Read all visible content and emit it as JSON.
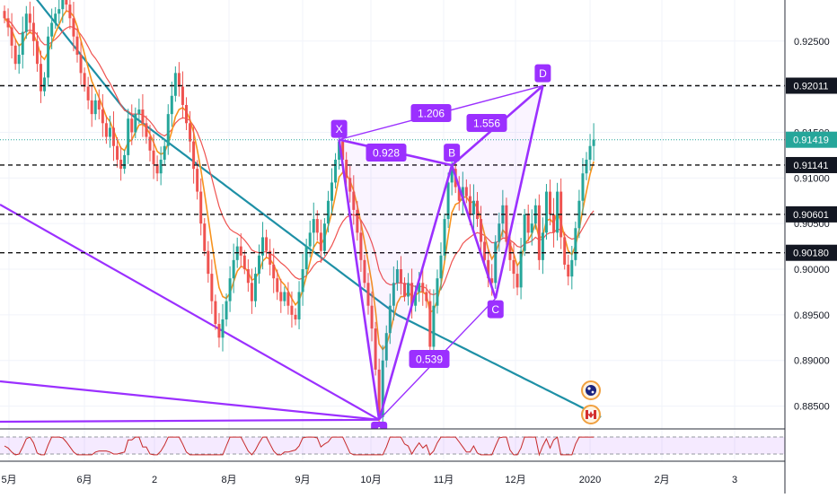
{
  "colors": {
    "up": "#26a69a",
    "down": "#ef5350",
    "pattern": "#9b30ff",
    "ma_orange": "#f7931e",
    "ma_red": "#ef5350",
    "ma_teal": "#1e90a6",
    "last_price": "#26a69a",
    "rsi": "#c62828"
  },
  "chart_data": {
    "type": "candlestick",
    "y_range": [
      0.8825,
      0.9295
    ],
    "price_axis_ticks": [
      "0.92500",
      "0.92000",
      "0.91500",
      "0.91000",
      "0.90500",
      "0.90000",
      "0.89500",
      "0.89000",
      "0.88500"
    ],
    "price_tick_values": [
      0.925,
      0.92,
      0.915,
      0.91,
      0.905,
      0.9,
      0.895,
      0.89,
      0.885
    ],
    "time_axis_labels": [
      "5月",
      "6月",
      "2",
      "8月",
      "9月",
      "10月",
      "11月",
      "12月",
      "2020",
      "2月",
      "3"
    ],
    "horizontal_levels": [
      {
        "value": 0.92011,
        "label": "0.92011"
      },
      {
        "value": 0.91141,
        "label": "0.91141"
      },
      {
        "value": 0.90601,
        "label": "0.90601"
      },
      {
        "value": 0.9018,
        "label": "0.90180"
      }
    ],
    "last_price": {
      "value": 0.91419,
      "label": "0.91419"
    },
    "pattern_points": [
      {
        "name": "X",
        "bar": 92,
        "value": 0.9142
      },
      {
        "name": "A",
        "bar": 103,
        "value": 0.8835
      },
      {
        "name": "B",
        "bar": 123,
        "value": 0.9114
      },
      {
        "name": "C",
        "bar": 135,
        "value": 0.8968
      },
      {
        "name": "D",
        "bar": 148,
        "value": 0.9201
      }
    ],
    "ratios": [
      "1.206",
      "1.556",
      "0.928",
      "0.539"
    ],
    "close": [
      0.9275,
      0.9265,
      0.9245,
      0.9225,
      0.9235,
      0.926,
      0.928,
      0.927,
      0.925,
      0.9225,
      0.9195,
      0.921,
      0.9255,
      0.927,
      0.928,
      0.9285,
      0.9295,
      0.929,
      0.9275,
      0.9255,
      0.9235,
      0.9215,
      0.92,
      0.9185,
      0.917,
      0.9185,
      0.9175,
      0.916,
      0.9145,
      0.9155,
      0.9135,
      0.912,
      0.911,
      0.9125,
      0.9165,
      0.915,
      0.917,
      0.9175,
      0.916,
      0.9145,
      0.913,
      0.9115,
      0.9105,
      0.912,
      0.9135,
      0.917,
      0.919,
      0.9215,
      0.92,
      0.918,
      0.916,
      0.914,
      0.911,
      0.9085,
      0.905,
      0.902,
      0.8995,
      0.8965,
      0.894,
      0.8925,
      0.8945,
      0.8965,
      0.899,
      0.901,
      0.9025,
      0.9015,
      0.9,
      0.8985,
      0.8965,
      0.8995,
      0.9015,
      0.9035,
      0.902,
      0.9005,
      0.899,
      0.8975,
      0.8965,
      0.8975,
      0.896,
      0.895,
      0.8945,
      0.8975,
      0.9,
      0.9025,
      0.904,
      0.9055,
      0.904,
      0.902,
      0.905,
      0.9075,
      0.9095,
      0.912,
      0.914,
      0.912,
      0.91,
      0.9085,
      0.9065,
      0.904,
      0.901,
      0.8985,
      0.896,
      0.8935,
      0.889,
      0.8838,
      0.89,
      0.893,
      0.896,
      0.8985,
      0.9,
      0.8985,
      0.897,
      0.8985,
      0.896,
      0.8975,
      0.8985,
      0.8975,
      0.8965,
      0.8915,
      0.896,
      0.899,
      0.9015,
      0.9055,
      0.9095,
      0.911,
      0.909,
      0.9075,
      0.909,
      0.908,
      0.906,
      0.9075,
      0.9055,
      0.903,
      0.901,
      0.899,
      0.8985,
      0.903,
      0.905,
      0.907,
      0.903,
      0.901,
      0.8995,
      0.898,
      0.902,
      0.906,
      0.904,
      0.905,
      0.907,
      0.901,
      0.904,
      0.9085,
      0.906,
      0.904,
      0.9085,
      0.9035,
      0.9005,
      0.8992,
      0.901,
      0.9045,
      0.9075,
      0.9105,
      0.912,
      0.9135,
      0.9142
    ],
    "ma_orange": [
      0.9275,
      0.927,
      0.9262,
      0.9252,
      0.9245,
      0.9248,
      0.9256,
      0.926,
      0.9257,
      0.9248,
      0.9234,
      0.923,
      0.9238,
      0.9248,
      0.9259,
      0.9268,
      0.9277,
      0.9283,
      0.9282,
      0.9277,
      0.9266,
      0.9251,
      0.9236,
      0.9221,
      0.9206,
      0.9197,
      0.9188,
      0.9178,
      0.9167,
      0.9162,
      0.9152,
      0.9142,
      0.9133,
      0.913,
      0.9139,
      0.9142,
      0.915,
      0.9158,
      0.9159,
      0.9155,
      0.9148,
      0.9139,
      0.9129,
      0.9126,
      0.9128,
      0.9138,
      0.9151,
      0.9167,
      0.9175,
      0.9177,
      0.9173,
      0.9164,
      0.915,
      0.9131,
      0.9109,
      0.9083,
      0.9056,
      0.9029,
      0.9003,
      0.898,
      0.897,
      0.8968,
      0.8974,
      0.8986,
      0.8998,
      0.9003,
      0.9002,
      0.8997,
      0.8988,
      0.899,
      0.8997,
      0.9009,
      0.9013,
      0.9011,
      0.9005,
      0.8996,
      0.8987,
      0.8983,
      0.8976,
      0.8968,
      0.8961,
      0.8966,
      0.8977,
      0.8992,
      0.9008,
      0.9024,
      0.903,
      0.9027,
      0.9034,
      0.9047,
      0.9062,
      0.9081,
      0.9101,
      0.9106,
      0.9104,
      0.9097,
      0.9086,
      0.907,
      0.9051,
      0.903,
      0.9008,
      0.8985,
      0.8955,
      0.8918,
      0.8912,
      0.8917,
      0.893,
      0.8947,
      0.8963,
      0.897,
      0.897,
      0.8975,
      0.897,
      0.8971,
      0.8975,
      0.8975,
      0.8972,
      0.8953,
      0.8955,
      0.8966,
      0.8983,
      0.9008,
      0.9037,
      0.9062,
      0.9071,
      0.9073,
      0.9079,
      0.9079,
      0.9073,
      0.9074,
      0.9067,
      0.9054,
      0.9038,
      0.9022,
      0.9011,
      0.9018,
      0.9029,
      0.9043,
      0.9038,
      0.9028,
      0.9017,
      0.9004,
      0.901,
      0.9028,
      0.9032,
      0.9039,
      0.905,
      0.9034,
      0.9036,
      0.9053,
      0.9055,
      0.905,
      0.9063,
      0.9052,
      0.9035,
      0.902,
      0.9016,
      0.9026,
      0.9043,
      0.9065,
      0.9085,
      0.9104,
      0.9118
    ],
    "ma_red": [
      0.9275,
      0.9273,
      0.9269,
      0.9263,
      0.9258,
      0.9258,
      0.9261,
      0.9262,
      0.9261,
      0.9257,
      0.925,
      0.9246,
      0.9246,
      0.9249,
      0.9252,
      0.9256,
      0.9261,
      0.9264,
      0.9266,
      0.9265,
      0.9262,
      0.9257,
      0.9251,
      0.9244,
      0.9236,
      0.9231,
      0.9225,
      0.9218,
      0.921,
      0.9204,
      0.9196,
      0.9188,
      0.918,
      0.9174,
      0.9173,
      0.917,
      0.917,
      0.917,
      0.9169,
      0.9166,
      0.9162,
      0.9157,
      0.9151,
      0.9148,
      0.9146,
      0.9149,
      0.9153,
      0.916,
      0.9164,
      0.9166,
      0.9165,
      0.9163,
      0.9157,
      0.915,
      0.914,
      0.9128,
      0.9114,
      0.91,
      0.9084,
      0.9069,
      0.9058,
      0.905,
      0.9044,
      0.9041,
      0.9039,
      0.9036,
      0.9032,
      0.9027,
      0.9021,
      0.9019,
      0.9018,
      0.9019,
      0.9019,
      0.9017,
      0.9015,
      0.9011,
      0.9007,
      0.9004,
      0.9,
      0.8995,
      0.8991,
      0.8989,
      0.899,
      0.8993,
      0.8998,
      0.9004,
      0.9008,
      0.9009,
      0.9013,
      0.9019,
      0.9026,
      0.9035,
      0.9045,
      0.9052,
      0.9057,
      0.9059,
      0.906,
      0.9058,
      0.9054,
      0.9047,
      0.9039,
      0.9029,
      0.9016,
      0.8999,
      0.899,
      0.8985,
      0.8983,
      0.8983,
      0.8985,
      0.8985,
      0.8984,
      0.8984,
      0.8982,
      0.8981,
      0.8981,
      0.8981,
      0.8979,
      0.8973,
      0.8972,
      0.8974,
      0.8978,
      0.8986,
      0.8997,
      0.9008,
      0.9016,
      0.9021,
      0.9028,
      0.9032,
      0.9035,
      0.9038,
      0.904,
      0.9039,
      0.9037,
      0.9033,
      0.9029,
      0.9029,
      0.9031,
      0.9034,
      0.9034,
      0.9032,
      0.9029,
      0.9025,
      0.9024,
      0.9028,
      0.9029,
      0.9031,
      0.9035,
      0.9032,
      0.9033,
      0.9038,
      0.904,
      0.904,
      0.9044,
      0.9043,
      0.9039,
      0.9035,
      0.9033,
      0.9034,
      0.9038,
      0.9045,
      0.9052,
      0.9059,
      0.9064
    ],
    "ma_teal": [
      0.934,
      0.9335,
      0.933,
      0.9325,
      0.932,
      0.9315,
      0.931,
      0.9305,
      0.93,
      0.9295,
      0.929,
      0.9285,
      0.928,
      0.9275,
      0.927,
      0.9265,
      0.926,
      0.9255,
      0.925,
      0.9245,
      0.924,
      0.9235,
      0.923,
      0.9225,
      0.922,
      0.9215,
      0.921,
      0.9205,
      0.92,
      0.9195,
      0.919,
      0.9185,
      0.918,
      0.9175,
      0.9172,
      0.9169,
      0.9166,
      0.9163,
      0.916,
      0.9157,
      0.9154,
      0.9151,
      0.9148,
      0.9145,
      0.9142,
      0.9139,
      0.9136,
      0.9133,
      0.913,
      0.9127,
      0.9124,
      0.9121,
      0.9118,
      0.9115,
      0.9112,
      0.9109,
      0.9106,
      0.9103,
      0.91,
      0.9097,
      0.9094,
      0.9091,
      0.9088,
      0.9085,
      0.9082,
      0.9079,
      0.9076,
      0.9073,
      0.907,
      0.9067,
      0.9064,
      0.9061,
      0.9058,
      0.9055,
      0.9052,
      0.9049,
      0.9046,
      0.9043,
      0.904,
      0.9037,
      0.9034,
      0.9031,
      0.9028,
      0.9025,
      0.9022,
      0.9019,
      0.9016,
      0.9013,
      0.901,
      0.9007,
      0.9004,
      0.9001,
      0.8998,
      0.8995,
      0.8992,
      0.8989,
      0.8986,
      0.8983,
      0.898,
      0.8977,
      0.8974,
      0.8971,
      0.8968,
      0.8965,
      0.8962,
      0.8959,
      0.8956,
      0.8953,
      0.895,
      0.8948,
      0.8946,
      0.8944,
      0.8942,
      0.894,
      0.8938,
      0.8936,
      0.8934,
      0.8932,
      0.893,
      0.8928,
      0.8926,
      0.8924,
      0.8922,
      0.892,
      0.8918,
      0.8916,
      0.8914,
      0.8912,
      0.891,
      0.8908,
      0.8906,
      0.8904,
      0.8902,
      0.89,
      0.8898,
      0.8896,
      0.8894,
      0.8892,
      0.889,
      0.8888,
      0.8886,
      0.8884,
      0.8882,
      0.888,
      0.8878,
      0.8876,
      0.8874,
      0.8872,
      0.887,
      0.8868,
      0.8866,
      0.8864,
      0.8862,
      0.886,
      0.8858,
      0.8856,
      0.8854,
      0.8852,
      0.885,
      0.8848,
      0.8846,
      0.8844,
      0.8842,
      0.884,
      0.8838
    ]
  }
}
